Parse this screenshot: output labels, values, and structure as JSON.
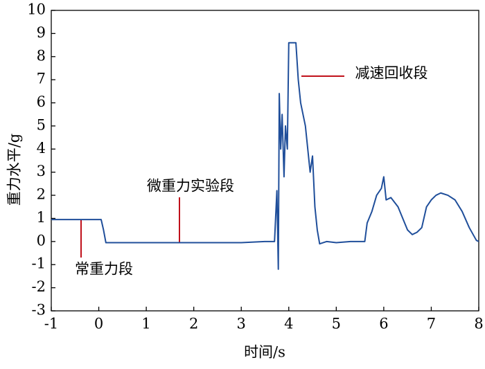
{
  "chart_data": {
    "type": "line",
    "xlabel": "时间/s",
    "ylabel": "重力水平/g",
    "annotations": [
      "常重力段",
      "微重力实验段",
      "减速回收段"
    ],
    "x": [
      -1,
      0.05,
      0.1,
      0.15,
      0.5,
      1.0,
      1.5,
      2.0,
      2.5,
      3.0,
      3.5,
      3.7,
      3.75,
      3.78,
      3.8,
      3.83,
      3.86,
      3.9,
      3.93,
      3.97,
      4.0,
      4.05,
      4.15,
      4.2,
      4.25,
      4.35,
      4.45,
      4.5,
      4.55,
      4.6,
      4.65,
      4.8,
      5.0,
      5.3,
      5.6,
      5.65,
      5.75,
      5.85,
      5.95,
      6.0,
      6.05,
      6.15,
      6.3,
      6.4,
      6.5,
      6.6,
      6.7,
      6.8,
      6.9,
      7.0,
      7.1,
      7.2,
      7.35,
      7.5,
      7.65,
      7.8,
      7.95,
      8.0
    ],
    "series": [
      {
        "name": "重力水平",
        "color": "#1f4e9a",
        "values": [
          0.95,
          0.95,
          0.5,
          -0.05,
          -0.05,
          -0.05,
          -0.05,
          -0.05,
          -0.05,
          -0.05,
          0.0,
          0.0,
          2.2,
          -1.2,
          6.4,
          4.0,
          5.5,
          2.8,
          5.0,
          4.0,
          8.6,
          8.6,
          8.6,
          7.0,
          6.0,
          5.0,
          3.0,
          3.7,
          1.5,
          0.5,
          -0.1,
          0.0,
          -0.05,
          0.0,
          0.0,
          0.8,
          1.3,
          2.0,
          2.3,
          2.8,
          1.8,
          1.9,
          1.5,
          1.0,
          0.5,
          0.3,
          0.4,
          0.6,
          1.5,
          1.8,
          2.0,
          2.1,
          2.0,
          1.8,
          1.3,
          0.6,
          0.05,
          0.0
        ]
      }
    ],
    "xlim": [
      -1,
      8
    ],
    "xticks": [
      -1,
      0,
      1,
      2,
      3,
      4,
      5,
      6,
      7,
      8
    ],
    "ylim": [
      -3,
      10
    ],
    "yticks": [
      -3,
      -2,
      -1,
      0,
      1,
      2,
      3,
      4,
      5,
      6,
      7,
      8,
      9,
      10
    ]
  }
}
